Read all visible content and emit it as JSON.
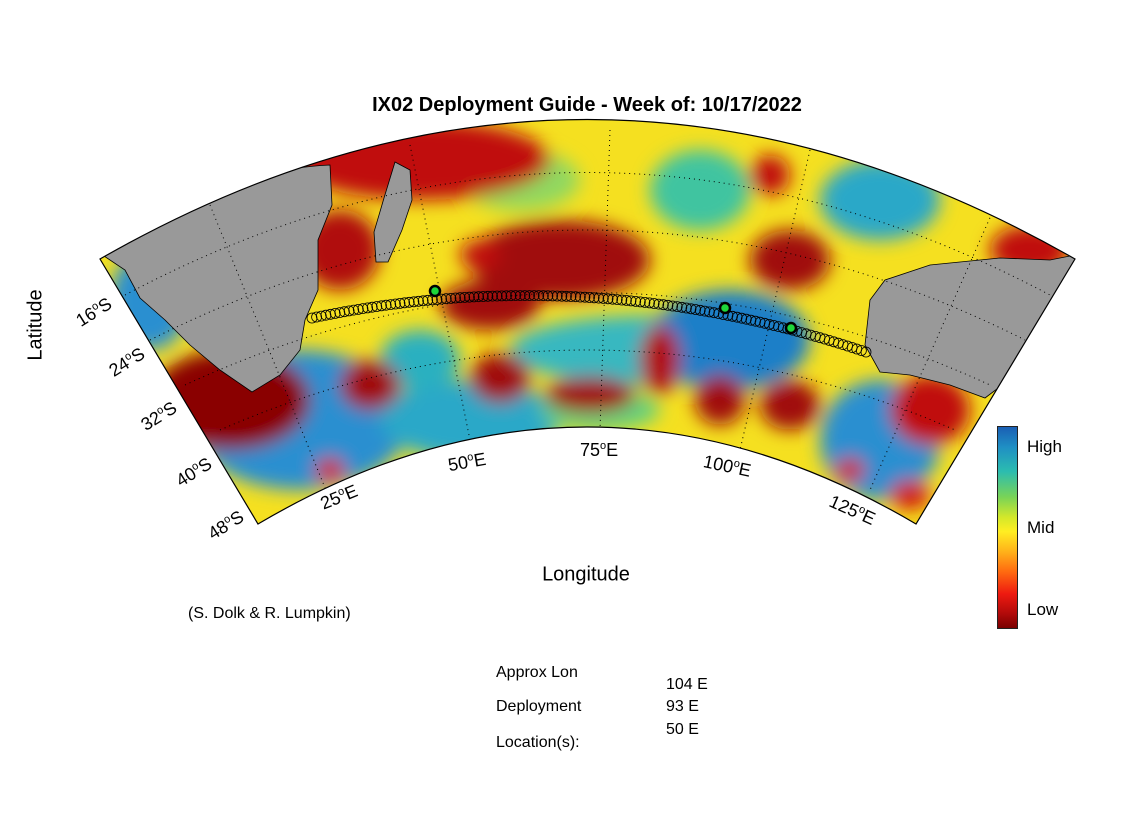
{
  "title": "IX02 Deployment Guide - Week of: 10/17/2022",
  "axes": {
    "ylabel": "Latitude",
    "xlabel": "Longitude"
  },
  "lat_ticks": [
    {
      "deg": "16",
      "hem": "S"
    },
    {
      "deg": "24",
      "hem": "S"
    },
    {
      "deg": "32",
      "hem": "S"
    },
    {
      "deg": "40",
      "hem": "S"
    },
    {
      "deg": "48",
      "hem": "S"
    }
  ],
  "lon_ticks": [
    {
      "deg": "25",
      "hem": "E"
    },
    {
      "deg": "50",
      "hem": "E"
    },
    {
      "deg": "75",
      "hem": "E"
    },
    {
      "deg": "100",
      "hem": "E"
    },
    {
      "deg": "125",
      "hem": "E"
    }
  ],
  "colorbar": {
    "high": "High",
    "mid": "Mid",
    "low": "Low"
  },
  "credit": "(S. Dolk & R. Lumpkin)",
  "deployment": {
    "label_line1": "Approx Lon",
    "label_line2": "Deployment",
    "label_line3": "Location(s):",
    "lons": [
      "104 E",
      "93 E",
      "50 E"
    ]
  },
  "colors": {
    "land": "#999999",
    "marker_fill": "#1ed63a",
    "track": "#000000"
  },
  "map_extent": {
    "lon_min": 20,
    "lon_max": 135,
    "lat_max": -10,
    "lat_min": -48
  }
}
